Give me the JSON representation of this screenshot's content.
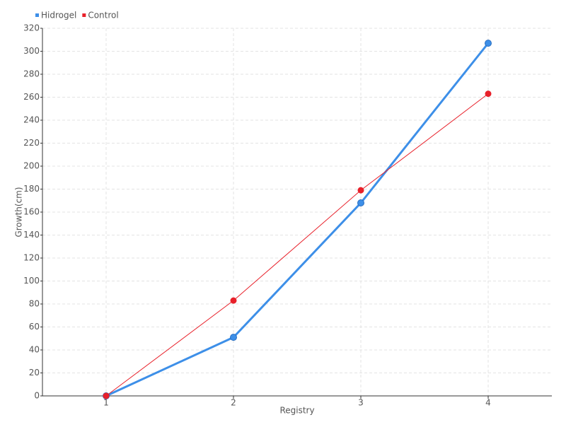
{
  "chart_data": {
    "type": "line",
    "x_label": "Registry",
    "y_label": "Growth(cm)",
    "categories": [
      "1",
      "2",
      "3",
      "4"
    ],
    "series": [
      {
        "name": "Hidrogel",
        "color": "#3d8fe8",
        "values": [
          0,
          51,
          168,
          307
        ]
      },
      {
        "name": "Control",
        "color": "#e8202a",
        "values": [
          0,
          83,
          179,
          263
        ]
      }
    ],
    "ylim": [
      0,
      320
    ],
    "yticks": [
      0,
      20,
      40,
      60,
      80,
      100,
      120,
      140,
      160,
      180,
      200,
      220,
      240,
      260,
      280,
      300,
      320
    ],
    "grid": true,
    "legend": "top-left"
  }
}
